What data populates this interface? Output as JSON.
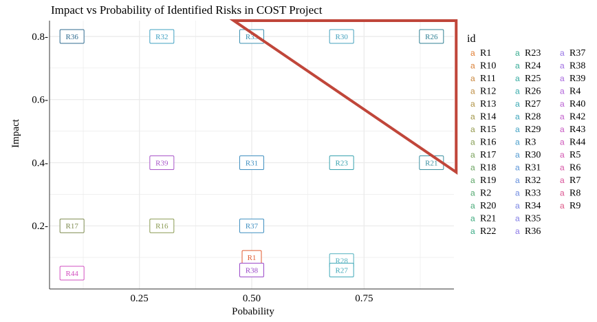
{
  "chart_data": {
    "type": "scatter",
    "title": "Impact vs Probability of Identified Risks in COST Project",
    "xlabel": "Pobability",
    "ylabel": "Impact",
    "xlim": [
      0.05,
      0.95
    ],
    "ylim": [
      0.0,
      0.85
    ],
    "x_ticks": [
      {
        "value": 0.25,
        "label": "0.25"
      },
      {
        "value": 0.5,
        "label": "0.50"
      },
      {
        "value": 0.75,
        "label": "0.75"
      }
    ],
    "y_ticks": [
      {
        "value": 0.2,
        "label": "0.2-"
      },
      {
        "value": 0.4,
        "label": "0.4-"
      },
      {
        "value": 0.6,
        "label": "0.6-"
      },
      {
        "value": 0.8,
        "label": "0.8-"
      }
    ],
    "grid": true,
    "legend_title": "id",
    "legend_placement": "right",
    "legend_glyph": "a",
    "legend_entries": [
      {
        "label": "R1",
        "color": "#E07A2E"
      },
      {
        "label": "R10",
        "color": "#D97F35"
      },
      {
        "label": "R11",
        "color": "#C9853A"
      },
      {
        "label": "R12",
        "color": "#BC8B3F"
      },
      {
        "label": "R13",
        "color": "#AE9041"
      },
      {
        "label": "R14",
        "color": "#A09446"
      },
      {
        "label": "R15",
        "color": "#92984B"
      },
      {
        "label": "R16",
        "color": "#849C50"
      },
      {
        "label": "R17",
        "color": "#769F57"
      },
      {
        "label": "R18",
        "color": "#68A25E"
      },
      {
        "label": "R19",
        "color": "#5AA465"
      },
      {
        "label": "R2",
        "color": "#4EA66C"
      },
      {
        "label": "R20",
        "color": "#44A874"
      },
      {
        "label": "R21",
        "color": "#3CA97C"
      },
      {
        "label": "R22",
        "color": "#38AA84"
      },
      {
        "label": "R23",
        "color": "#35AA8D"
      },
      {
        "label": "R24",
        "color": "#33AA96"
      },
      {
        "label": "R25",
        "color": "#32A99F"
      },
      {
        "label": "R26",
        "color": "#33A8A8"
      },
      {
        "label": "R27",
        "color": "#35A6B1"
      },
      {
        "label": "R28",
        "color": "#39A3BA"
      },
      {
        "label": "R29",
        "color": "#3FA0C2"
      },
      {
        "label": "R3",
        "color": "#469CCA"
      },
      {
        "label": "R30",
        "color": "#4F98D1"
      },
      {
        "label": "R31",
        "color": "#5893D7"
      },
      {
        "label": "R32",
        "color": "#628EDC"
      },
      {
        "label": "R33",
        "color": "#6C88E0"
      },
      {
        "label": "R34",
        "color": "#7682E3"
      },
      {
        "label": "R35",
        "color": "#807CE5"
      },
      {
        "label": "R36",
        "color": "#8A76E5"
      },
      {
        "label": "R37",
        "color": "#9470E4"
      },
      {
        "label": "R38",
        "color": "#9D6AE1"
      },
      {
        "label": "R39",
        "color": "#A665DD"
      },
      {
        "label": "R4",
        "color": "#AF60D8"
      },
      {
        "label": "R40",
        "color": "#B75CD1"
      },
      {
        "label": "R42",
        "color": "#BF58CA"
      },
      {
        "label": "R43",
        "color": "#C655C1"
      },
      {
        "label": "R44",
        "color": "#CC53B8"
      },
      {
        "label": "R5",
        "color": "#D151AE"
      },
      {
        "label": "R6",
        "color": "#D550A3"
      },
      {
        "label": "R7",
        "color": "#D85098"
      },
      {
        "label": "R8",
        "color": "#DA508D"
      },
      {
        "label": "R9",
        "color": "#DB5182"
      }
    ],
    "points": [
      {
        "label": "R36",
        "x": 0.1,
        "y": 0.8,
        "color": "#2F6B8F"
      },
      {
        "label": "R32",
        "x": 0.3,
        "y": 0.8,
        "color": "#3FA0C2"
      },
      {
        "label": "R33",
        "x": 0.5,
        "y": 0.8,
        "color": "#3A8FB0"
      },
      {
        "label": "R30",
        "x": 0.7,
        "y": 0.8,
        "color": "#43A0BD"
      },
      {
        "label": "R26",
        "x": 0.9,
        "y": 0.8,
        "color": "#2F7F93"
      },
      {
        "label": "R39",
        "x": 0.3,
        "y": 0.4,
        "color": "#A855C8"
      },
      {
        "label": "R31",
        "x": 0.5,
        "y": 0.4,
        "color": "#3F8FC0"
      },
      {
        "label": "R23",
        "x": 0.7,
        "y": 0.4,
        "color": "#37A2AE"
      },
      {
        "label": "R21",
        "x": 0.9,
        "y": 0.4,
        "color": "#3A8FA0"
      },
      {
        "label": "R17",
        "x": 0.1,
        "y": 0.2,
        "color": "#7D8A4F"
      },
      {
        "label": "R16",
        "x": 0.3,
        "y": 0.2,
        "color": "#8A9A52"
      },
      {
        "label": "R37",
        "x": 0.5,
        "y": 0.2,
        "color": "#3F8FC0"
      },
      {
        "label": "R1",
        "x": 0.5,
        "y": 0.1,
        "color": "#E05A2E"
      },
      {
        "label": "R28",
        "x": 0.7,
        "y": 0.09,
        "color": "#4FB0BE"
      },
      {
        "label": "R44",
        "x": 0.1,
        "y": 0.05,
        "color": "#D24FC0"
      },
      {
        "label": "R38",
        "x": 0.5,
        "y": 0.06,
        "color": "#9A48C8"
      },
      {
        "label": "R27",
        "x": 0.7,
        "y": 0.06,
        "color": "#3FA8B8"
      }
    ],
    "annotation": {
      "shape": "triangle",
      "color": "#C0463A",
      "vertices": [
        [
          0.46,
          0.85
        ],
        [
          0.955,
          0.85
        ],
        [
          0.955,
          0.37
        ]
      ]
    }
  }
}
